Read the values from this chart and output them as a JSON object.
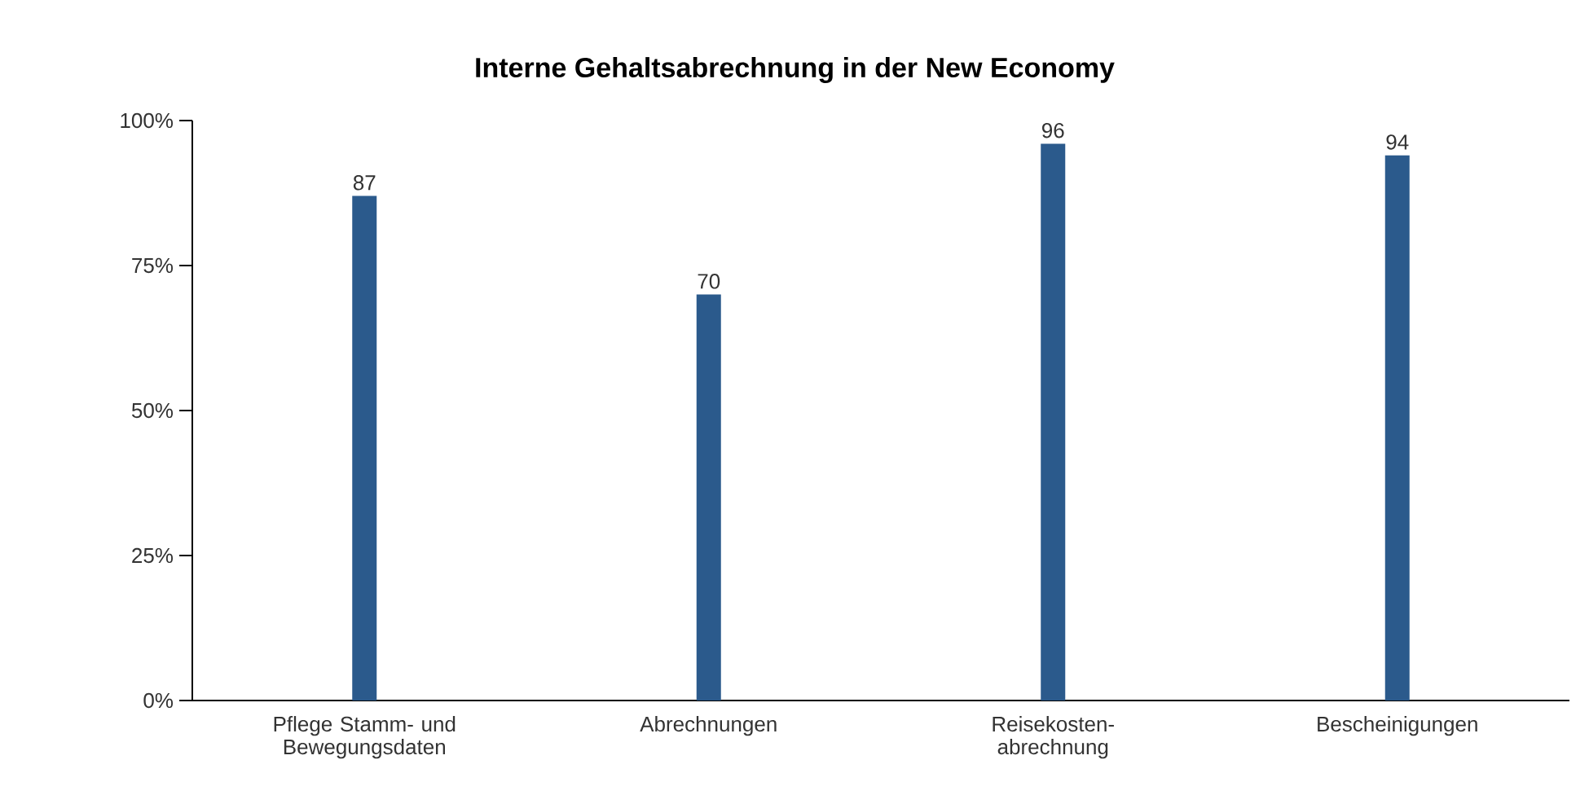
{
  "chart_data": {
    "type": "bar",
    "title": "Interne Gehaltsabrechnung in der New Economy",
    "categories": [
      "Pflege Stamm- und Bewegungsdaten",
      "Abrechnungen",
      "Reisekosten-abrechnung",
      "Bescheinigungen"
    ],
    "values": [
      87,
      70,
      96,
      94
    ],
    "color": "#2b5a8c",
    "ylim": [
      0,
      100
    ],
    "yticks": [
      {
        "value": 0,
        "label": "0%"
      },
      {
        "value": 25,
        "label": "25%"
      },
      {
        "value": 50,
        "label": "50%"
      },
      {
        "value": 75,
        "label": "75%"
      },
      {
        "value": 100,
        "label": "100%"
      }
    ],
    "data_labels": true,
    "grid": false
  }
}
